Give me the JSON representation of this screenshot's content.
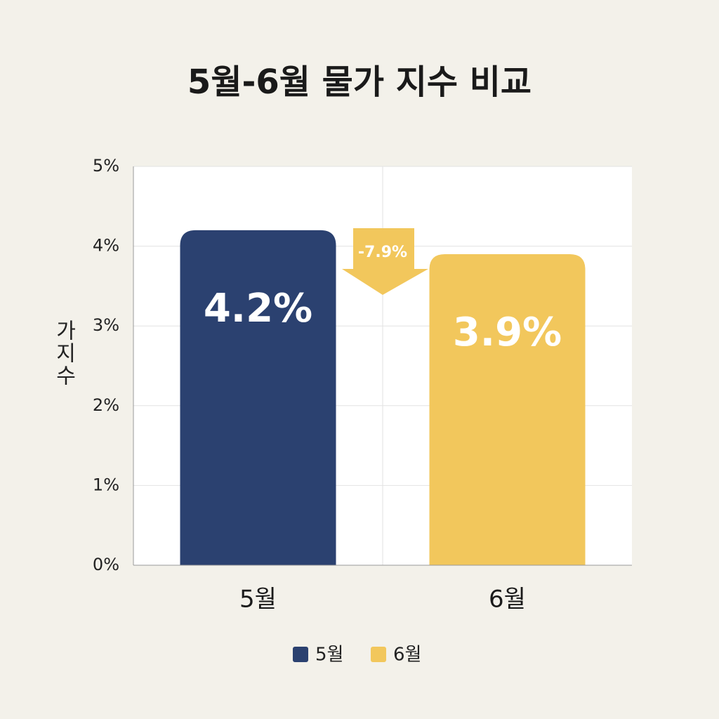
{
  "chart_data": {
    "type": "bar",
    "title": "5월-6월 물가 지수 비교",
    "y_label": "가지수",
    "categories": [
      "5월",
      "6월"
    ],
    "series": [
      {
        "name": "5월",
        "color": "#2b4170",
        "values": [
          4.2,
          null
        ],
        "value_labels": [
          "4.2%",
          null
        ]
      },
      {
        "name": "6월",
        "color": "#f2c75c",
        "values": [
          null,
          3.9
        ],
        "value_labels": [
          null,
          "3.9%"
        ]
      }
    ],
    "annotation": "-7.9%",
    "ylim": [
      0,
      5
    ],
    "yticks": [
      {
        "value": 0,
        "label": "0%"
      },
      {
        "value": 1,
        "label": "1%"
      },
      {
        "value": 2,
        "label": "2%"
      },
      {
        "value": 3,
        "label": "3%"
      },
      {
        "value": 4,
        "label": "4%"
      },
      {
        "value": 5,
        "label": "5%"
      }
    ],
    "grid": true
  }
}
